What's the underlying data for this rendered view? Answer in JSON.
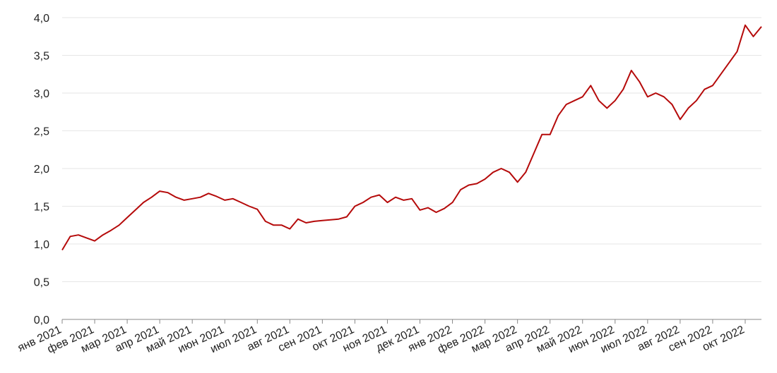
{
  "chart_data": {
    "type": "line",
    "categories": [
      "янв 2021",
      null,
      null,
      null,
      "фев 2021",
      null,
      null,
      null,
      "мар 2021",
      null,
      null,
      null,
      "апр 2021",
      null,
      null,
      null,
      "май 2021",
      null,
      null,
      null,
      "июн 2021",
      null,
      null,
      null,
      "июл 2021",
      null,
      null,
      null,
      "авг 2021",
      null,
      null,
      null,
      "сен 2021",
      null,
      null,
      null,
      "окт 2021",
      null,
      null,
      null,
      "ноя 2021",
      null,
      null,
      null,
      "дек 2021",
      null,
      null,
      null,
      "янв 2022",
      null,
      null,
      null,
      "фев 2022",
      null,
      null,
      null,
      "мар 2022",
      null,
      null,
      null,
      "апр 2022",
      null,
      null,
      null,
      "май 2022",
      null,
      null,
      null,
      "июн 2022",
      null,
      null,
      null,
      "июл 2022",
      null,
      null,
      null,
      "авг 2022",
      null,
      null,
      null,
      "сен 2022",
      null,
      null,
      null,
      "окт 2022",
      null,
      null
    ],
    "series": [
      {
        "color": "#b50a0a",
        "values": [
          0.92,
          1.1,
          1.12,
          1.08,
          1.04,
          1.12,
          1.18,
          1.25,
          1.35,
          1.45,
          1.55,
          1.62,
          1.7,
          1.68,
          1.62,
          1.58,
          1.6,
          1.62,
          1.67,
          1.63,
          1.58,
          1.6,
          1.55,
          1.5,
          1.46,
          1.3,
          1.25,
          1.25,
          1.2,
          1.33,
          1.28,
          1.3,
          1.31,
          1.32,
          1.33,
          1.36,
          1.5,
          1.55,
          1.62,
          1.65,
          1.55,
          1.62,
          1.58,
          1.6,
          1.45,
          1.48,
          1.42,
          1.47,
          1.55,
          1.72,
          1.78,
          1.8,
          1.86,
          1.95,
          2.0,
          1.95,
          1.82,
          1.95,
          2.2,
          2.45,
          2.45,
          2.7,
          2.85,
          2.9,
          2.95,
          3.1,
          2.9,
          2.8,
          2.9,
          3.05,
          3.3,
          3.15,
          2.95,
          3.0,
          2.95,
          2.85,
          2.65,
          2.8,
          2.9,
          3.05,
          3.1,
          3.25,
          3.4,
          3.55,
          3.9,
          3.75,
          3.88
        ]
      }
    ],
    "ylim": [
      0,
      4
    ],
    "yticks": [
      {
        "value": 0,
        "label": "0,0"
      },
      {
        "value": 0.5,
        "label": "0,5"
      },
      {
        "value": 1,
        "label": "1,0"
      },
      {
        "value": 1.5,
        "label": "1,5"
      },
      {
        "value": 2,
        "label": "2,0"
      },
      {
        "value": 2.5,
        "label": "2,5"
      },
      {
        "value": 3,
        "label": "3,0"
      },
      {
        "value": 3.5,
        "label": "3,5"
      },
      {
        "value": 4,
        "label": "4,0"
      }
    ],
    "grid": true
  }
}
